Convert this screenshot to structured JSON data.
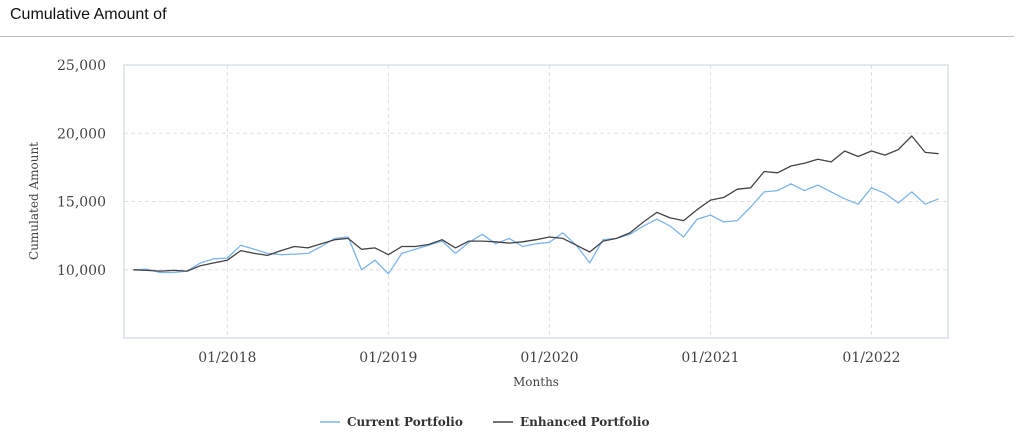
{
  "header": {
    "title": "Cumulative Amount of"
  },
  "chart_data": {
    "type": "line",
    "title": "",
    "xlabel": "Months",
    "ylabel": "Cumulated Amount",
    "ylim": [
      5000,
      25000
    ],
    "yticks": [
      10000,
      15000,
      20000,
      25000
    ],
    "ytick_labels": [
      "10,000",
      "15,000",
      "20,000",
      "25,000"
    ],
    "xlim": [
      "2017-06",
      "2022-06"
    ],
    "xticks": [
      "2018-01",
      "2019-01",
      "2020-01",
      "2021-01",
      "2022-01"
    ],
    "xtick_labels": [
      "01/2018",
      "01/2019",
      "01/2020",
      "01/2021",
      "01/2022"
    ],
    "grid": true,
    "legend_position": "bottom",
    "x": [
      "2017-06",
      "2017-07",
      "2017-08",
      "2017-09",
      "2017-10",
      "2017-11",
      "2017-12",
      "2018-01",
      "2018-02",
      "2018-03",
      "2018-04",
      "2018-05",
      "2018-06",
      "2018-07",
      "2018-08",
      "2018-09",
      "2018-10",
      "2018-11",
      "2018-12",
      "2019-01",
      "2019-02",
      "2019-03",
      "2019-04",
      "2019-05",
      "2019-06",
      "2019-07",
      "2019-08",
      "2019-09",
      "2019-10",
      "2019-11",
      "2019-12",
      "2020-01",
      "2020-02",
      "2020-03",
      "2020-04",
      "2020-05",
      "2020-06",
      "2020-07",
      "2020-08",
      "2020-09",
      "2020-10",
      "2020-11",
      "2020-12",
      "2021-01",
      "2021-02",
      "2021-03",
      "2021-04",
      "2021-05",
      "2021-06",
      "2021-07",
      "2021-08",
      "2021-09",
      "2021-10",
      "2021-11",
      "2021-12",
      "2022-01",
      "2022-02",
      "2022-03",
      "2022-04",
      "2022-05",
      "2022-06"
    ],
    "series": [
      {
        "name": "Current Portfolio",
        "color": "#7cb5ec",
        "values": [
          10000,
          10050,
          9800,
          9800,
          9900,
          10500,
          10800,
          10850,
          11800,
          11500,
          11200,
          11100,
          11150,
          11200,
          11700,
          12300,
          12400,
          10000,
          10700,
          9700,
          11200,
          11500,
          11800,
          12100,
          11200,
          12000,
          12600,
          11900,
          12300,
          11700,
          11900,
          12000,
          12700,
          11800,
          10500,
          12200,
          12300,
          12600,
          13200,
          13700,
          13200,
          12400,
          13700,
          14000,
          13500,
          13600,
          14600,
          15700,
          15800,
          16300,
          15800,
          16200,
          15700,
          15200,
          14800,
          16000,
          15600,
          14900,
          15700,
          14800,
          15200
        ]
      },
      {
        "name": "Enhanced Portfolio",
        "color": "#434348",
        "values": [
          10000,
          9950,
          9900,
          9950,
          9900,
          10300,
          10500,
          10700,
          11400,
          11200,
          11050,
          11400,
          11700,
          11600,
          11900,
          12200,
          12300,
          11500,
          11600,
          11100,
          11700,
          11700,
          11850,
          12200,
          11600,
          12100,
          12100,
          12050,
          11950,
          12050,
          12200,
          12400,
          12300,
          11800,
          11300,
          12100,
          12300,
          12700,
          13500,
          14200,
          13800,
          13600,
          14400,
          15100,
          15300,
          15900,
          16000,
          17200,
          17100,
          17600,
          17800,
          18100,
          17900,
          18700,
          18300,
          18700,
          18400,
          18800,
          19800,
          18600,
          18500
        ]
      }
    ]
  }
}
